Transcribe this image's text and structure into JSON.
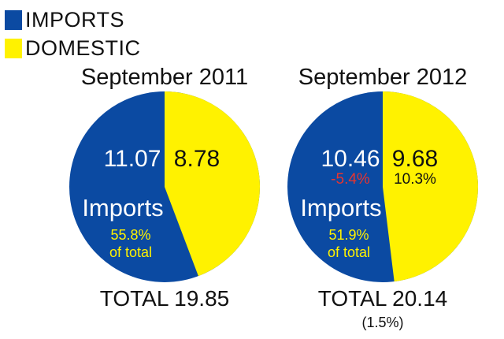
{
  "legend": [
    {
      "label": "IMPORTS",
      "color": "#0B4AA2"
    },
    {
      "label": "DOMESTIC",
      "color": "#FFF200"
    }
  ],
  "colors": {
    "imports": "#0B4AA2",
    "domestic": "#FFF200",
    "accent_text": "#FFF200",
    "negative_text": "#E8342E",
    "positive_text": "#111111"
  },
  "chart_data": [
    {
      "type": "pie",
      "title": "September 2011",
      "slices": [
        {
          "name": "IMPORTS",
          "value": 11.07,
          "label": "11.07"
        },
        {
          "name": "DOMESTIC",
          "value": 8.78,
          "label": "8.78"
        }
      ],
      "center_label": "Imports",
      "imports_share_line1": "55.8%",
      "imports_share_line2": "of total",
      "total_label": "TOTAL 19.85"
    },
    {
      "type": "pie",
      "title": "September 2012",
      "slices": [
        {
          "name": "IMPORTS",
          "value": 10.46,
          "label": "10.46",
          "change": "-5.4%"
        },
        {
          "name": "DOMESTIC",
          "value": 9.68,
          "label": "9.68",
          "change": "10.3%"
        }
      ],
      "center_label": "Imports",
      "imports_share_line1": "51.9%",
      "imports_share_line2": "of total",
      "total_label": "TOTAL 20.14",
      "total_change": "(1.5%)"
    }
  ]
}
